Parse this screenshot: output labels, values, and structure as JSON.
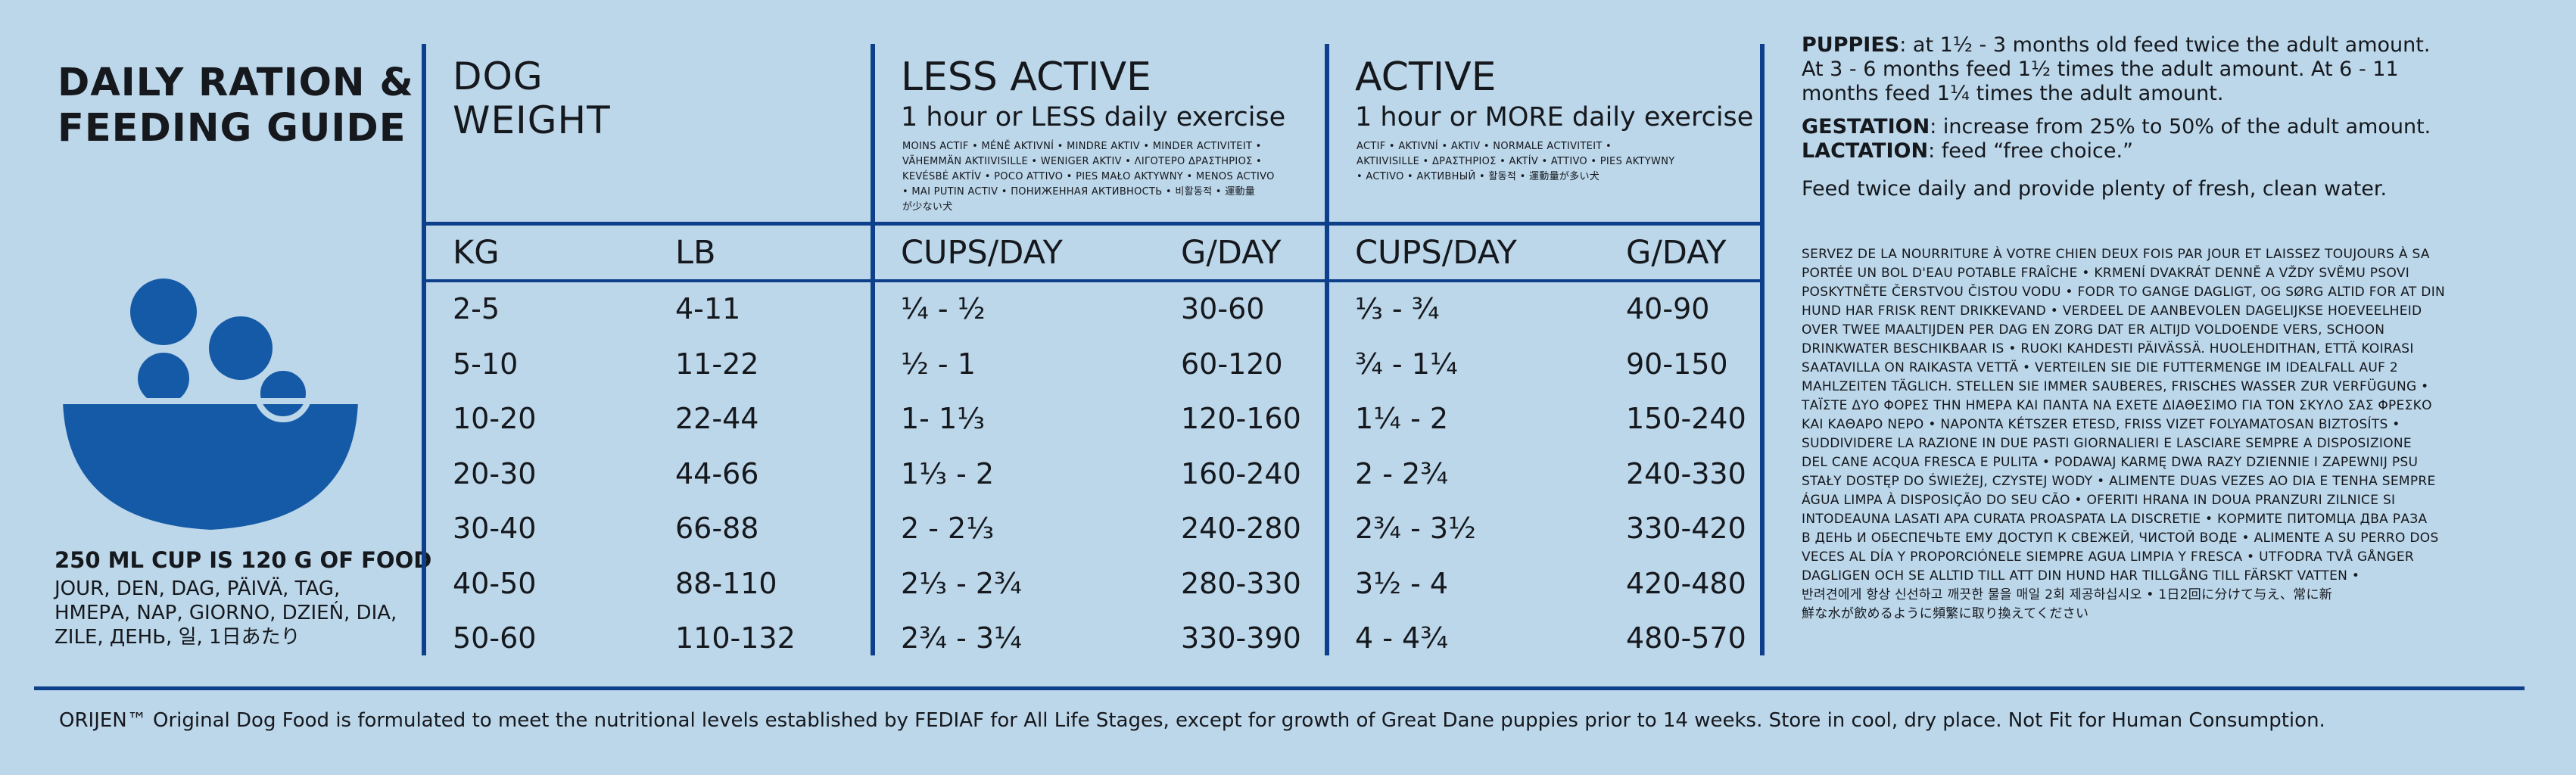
{
  "guide": {
    "title_line1": "DAILY RATION &",
    "title_line2": "FEEDING GUIDE",
    "cup_note": "250 ML CUP IS 120 G OF FOOD",
    "multilang_line1": "JOUR, DEN, DAG, PÄIVÄ, TAG,",
    "multilang_line2": "ΗΜΕΡΑ, NAP, GIORNO, DZIEŃ, DIA,",
    "multilang_line3": "ZILE, ДЕНЬ, 일, 1日あたり"
  },
  "columns": {
    "dog_weight_line1": "DOG",
    "dog_weight_line2": "WEIGHT",
    "less_active_title": "LESS ACTIVE",
    "less_active_sub": "1 hour or LESS daily exercise",
    "less_active_tr1": "MOINS ACTIF • MÉNĚ AKTIVNÍ • MINDRE AKTIV • MINDER ACTIVITEIT •",
    "less_active_tr2": "VÄHEMMÄN AKTIIVISILLE • WENIGER AKTIV • ΛΙΓΟΤΕΡΟ ΔΡΑΣΤΗΡΙΟΣ •",
    "less_active_tr3": "KEVÉSBÉ AKTÍV • POCO ATTIVO • PIES MAŁO AKTYWNY • MENOS ACTIVO",
    "less_active_tr4": "• MAI PUTIN ACTIV • ПОНИЖЕННАЯ АКТИВНОСТЬ • 비활동적 • 運動量",
    "less_active_tr5": "が少ない犬",
    "active_title": "ACTIVE",
    "active_sub": "1 hour or MORE daily exercise",
    "active_tr1": "ACTIF • AKTIVNÍ • AKTIV • NORMALE ACTIVITEIT •",
    "active_tr2": "AKTIIVISILLE • ΔΡΑΣΤΗΡΙΟΣ • AKTÍV • ATTIVO • PIES AKTYWNY",
    "active_tr3": "• ACTIVO • АКТИВНЫЙ • 활동적 • 運動量が多い犬",
    "kg": "KG",
    "lb": "LB",
    "cups_day": "CUPS/DAY",
    "g_day": "G/DAY"
  },
  "rows": [
    {
      "kg": "2-5",
      "lb": "4-11",
      "less_cups": "¼ - ½",
      "less_g": "30-60",
      "act_cups": "⅓ - ¾",
      "act_g": "40-90"
    },
    {
      "kg": "5-10",
      "lb": "11-22",
      "less_cups": "½ - 1",
      "less_g": "60-120",
      "act_cups": "¾ - 1¼",
      "act_g": "90-150"
    },
    {
      "kg": "10-20",
      "lb": "22-44",
      "less_cups": "1- 1⅓",
      "less_g": "120-160",
      "act_cups": "1¼ - 2",
      "act_g": "150-240"
    },
    {
      "kg": "20-30",
      "lb": "44-66",
      "less_cups": "1⅓ - 2",
      "less_g": "160-240",
      "act_cups": "2 - 2¾",
      "act_g": "240-330"
    },
    {
      "kg": "30-40",
      "lb": "66-88",
      "less_cups": "2 - 2⅓",
      "less_g": "240-280",
      "act_cups": "2¾ - 3½",
      "act_g": "330-420"
    },
    {
      "kg": "40-50",
      "lb": "88-110",
      "less_cups": "2⅓ - 2¾",
      "less_g": "280-330",
      "act_cups": "3½ - 4",
      "act_g": "420-480"
    },
    {
      "kg": "50-60",
      "lb": "110-132",
      "less_cups": "2¾ - 3¼",
      "less_g": "330-390",
      "act_cups": "4 - 4¾",
      "act_g": "480-570"
    }
  ],
  "notes": {
    "puppies_label": "PUPPIES",
    "puppies_text1": ": at 1½ - 3 months old feed twice the adult amount.",
    "puppies_text2": "At  3 - 6 months feed 1½ times the adult amount. At 6 - 11",
    "puppies_text3": "months feed 1¼ times the adult amount.",
    "gestation_label": "GESTATION",
    "gestation_text": ": increase from 25% to 50% of the adult amount.",
    "lactation_label": "LACTATION",
    "lactation_text": ": feed “free choice.”",
    "feed_twice": "Feed twice daily and provide plenty of fresh, clean water.",
    "ml1": "SERVEZ DE LA NOURRITURE À VOTRE CHIEN DEUX FOIS PAR JOUR ET LAISSEZ TOUJOURS À SA",
    "ml2": "PORTÉE UN BOL D'EAU POTABLE FRAÎCHE • KRMENÍ DVAKRÁT DENNĚ A VŽDY SVĚMU PSOVI",
    "ml3": "POSKYTNĚTE ČERSTVOU ČISTOU VODU • FODR TO GANGE DAGLIGT, OG SØRG ALTID FOR AT DIN",
    "ml4": "HUND HAR FRISK RENT DRIKKEVAND • VERDEEL DE AANBEVOLEN DAGELIJKSE HOEVEELHEID",
    "ml5": "OVER TWEE MAALTIJDEN PER DAG EN ZORG DAT ER ALTIJD VOLDOENDE VERS, SCHOON",
    "ml6": "DRINKWATER BESCHIKBAAR IS • RUOKI KAHDESTI PÄIVÄSSÄ. HUOLEHDITHAN, ETTÄ KOIRASI",
    "ml7": "SAATAVILLA ON RAIKASTA VETTÄ • VERTEILEN SIE DIE FUTTERMENGE IM IDEALFALL AUF 2",
    "ml8": "MAHLZEITEN TÄGLICH. STELLEN SIE IMMER SAUBERES, FRISCHES WASSER ZUR VERFÜGUNG •",
    "ml9": "ΤΑΪΣΤΕ ΔΥΟ ΦΟΡΕΣ ΤΗΝ ΗΜΕΡΑ ΚΑΙ ΠΑΝΤΑ ΝΑ ΕΧΕΤΕ ΔΙΑΘΕΣΙΜΟ ΓΙΑ ΤΟΝ ΣΚΥΛΟ ΣΑΣ ΦΡΕΣΚΟ",
    "ml10": "ΚΑΙ ΚΑΘΑΡΟ ΝΕΡΟ • NAPONTA KÉTSZER ETESD, FRISS VIZET FOLYAMATOSAN BIZTOSÍTS •",
    "ml11": "SUDDIVIDERE LA RAZIONE IN DUE PASTI GIORNALIERI E LASCIARE SEMPRE A DISPOSIZIONE",
    "ml12": "DEL CANE ACQUA FRESCA E PULITA • PODAWAJ KARMĘ DWA RAZY DZIENNIE I ZAPEWNIJ PSU",
    "ml13": "STAŁY DOSTĘP DO ŚWIEŻEJ, CZYSTEJ WODY • ALIMENTE DUAS VEZES AO DIA E TENHA SEMPRE",
    "ml14": "ÁGUA LIMPA À DISPOSIÇÃO DO SEU CÃO • OFERITI HRANA IN DOUA PRANZURI ZILNICE SI",
    "ml15": "INTODEAUNA LASATI APA CURATA PROASPATA LA DISCRETIE • КОРМИТЕ ПИТОМЦА ДВА РАЗА",
    "ml16": "В ДЕНЬ И ОБЕСПЕЧЬТЕ ЕМУ ДОСТУП К СВЕЖЕЙ, ЧИСТОЙ ВОДЕ • ALIMENTE A SU PERRO DOS",
    "ml17": "VECES AL DÍA Y PROPORCIÓNELE SIEMPRE AGUA LIMPIA Y FRESCA • UTFODRA TVÅ GÅNGER",
    "ml18": "DAGLIGEN OCH SE ALLTID TILL ATT DIN HUND HAR TILLGÅNG TILL FÄRSKT VATTEN •",
    "ml19": "반려견에게 항상 신선하고 깨끗한 물을 매일 2회 제공하십시오 • 1日2回に分けて与え、常に新",
    "ml20": "鮮な水が飲めるように頻繁に取り換えてください"
  },
  "footer": {
    "text": "ORIJEN™ Original Dog Food is formulated to meet the nutritional levels established by FEDIAF for All Life Stages, except for growth of Great Dane puppies prior to 14 weeks. Store in cool, dry place. Not Fit for Human Consumption."
  },
  "colors": {
    "background": "#bcd6ea",
    "line_blue": "#0d3f8a",
    "bowl_blue": "#155aa6"
  },
  "icons": {
    "bowl": "dog-bowl-with-kibble-icon"
  }
}
